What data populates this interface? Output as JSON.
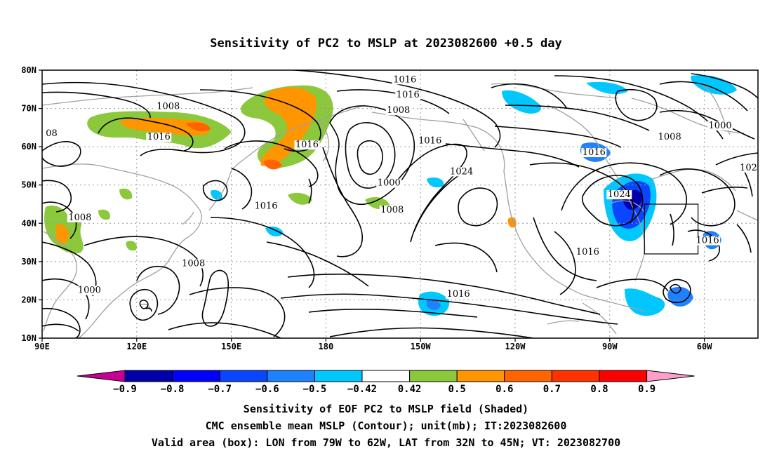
{
  "title": "Sensitivity of PC2 to MSLP at 2023082600 +0.5 day",
  "map": {
    "lon_ticks": [
      {
        "lon": 90,
        "label": "90E"
      },
      {
        "lon": 120,
        "label": "120E"
      },
      {
        "lon": 150,
        "label": "150E"
      },
      {
        "lon": 180,
        "label": "180"
      },
      {
        "lon": 210,
        "label": "150W"
      },
      {
        "lon": 240,
        "label": "120W"
      },
      {
        "lon": 270,
        "label": "90W"
      },
      {
        "lon": 300,
        "label": "60W"
      }
    ],
    "lat_ticks": [
      {
        "lat": 80,
        "label": "80N"
      },
      {
        "lat": 70,
        "label": "70N"
      },
      {
        "lat": 60,
        "label": "60N"
      },
      {
        "lat": 50,
        "label": "50N"
      },
      {
        "lat": 40,
        "label": "40N"
      },
      {
        "lat": 30,
        "label": "30N"
      },
      {
        "lat": 20,
        "label": "20N"
      },
      {
        "lat": 10,
        "label": "10N"
      }
    ],
    "lon_range": [
      90,
      317
    ],
    "lat_range": [
      10,
      80
    ],
    "grid": "dotted",
    "contour_labels": [
      {
        "text": "1016",
        "lon": 205,
        "lat": 77
      },
      {
        "text": "1016",
        "lon": 206,
        "lat": 73
      },
      {
        "text": "1008",
        "lon": 203,
        "lat": 69
      },
      {
        "text": "1008",
        "lon": 130,
        "lat": 70
      },
      {
        "text": "08",
        "lon": 93,
        "lat": 63
      },
      {
        "text": "1016",
        "lon": 127,
        "lat": 62
      },
      {
        "text": "1016",
        "lon": 174,
        "lat": 60
      },
      {
        "text": "1016",
        "lon": 213,
        "lat": 61
      },
      {
        "text": "1024",
        "lon": 223,
        "lat": 53
      },
      {
        "text": "1000",
        "lon": 200,
        "lat": 50
      },
      {
        "text": "1008",
        "lon": 201,
        "lat": 43
      },
      {
        "text": "1016",
        "lon": 161,
        "lat": 44
      },
      {
        "text": "1008",
        "lon": 102,
        "lat": 41
      },
      {
        "text": "1008",
        "lon": 138,
        "lat": 29
      },
      {
        "text": "1000",
        "lon": 105,
        "lat": 22
      },
      {
        "text": "1016",
        "lon": 222,
        "lat": 21
      },
      {
        "text": "1016",
        "lon": 263,
        "lat": 32
      },
      {
        "text": "1016",
        "lon": 265,
        "lat": 58
      },
      {
        "text": "1008",
        "lon": 289,
        "lat": 62
      },
      {
        "text": "1000",
        "lon": 305,
        "lat": 65
      },
      {
        "text": "1024",
        "lon": 273,
        "lat": 47
      },
      {
        "text": "1016",
        "lon": 301,
        "lat": 35
      },
      {
        "text": "102",
        "lon": 314,
        "lat": 54
      }
    ],
    "valid_box": {
      "lon_min": 281,
      "lon_max": 298,
      "lat_min": 32,
      "lat_max": 45
    }
  },
  "colorbar": {
    "colors": [
      "#0000aa",
      "#0000ff",
      "#0a46ff",
      "#1e82ff",
      "#00c8ff",
      "#ffffff",
      "#8cc83c",
      "#ff9600",
      "#ff6400",
      "#ff3200",
      "#ff0000"
    ],
    "left_arrow_color": "#c80096",
    "right_arrow_color": "#ff9ec8",
    "labels": [
      "−0.9",
      "−0.8",
      "−0.7",
      "−0.6",
      "−0.5",
      "−0.42",
      "0.42",
      "0.5",
      "0.6",
      "0.7",
      "0.8",
      "0.9"
    ]
  },
  "footer": {
    "line1": "Sensitivity of EOF PC2 to MSLP field (Shaded)",
    "line2": "CMC ensemble mean MSLP (Contour); unit(mb); IT:2023082600",
    "line3": "Valid area (box): LON from 79W to 62W, LAT from 32N to 45N; VT: 2023082700"
  },
  "colors": {
    "coast": "#a0a0a0",
    "contour": "#000000",
    "grid": "#999999"
  }
}
